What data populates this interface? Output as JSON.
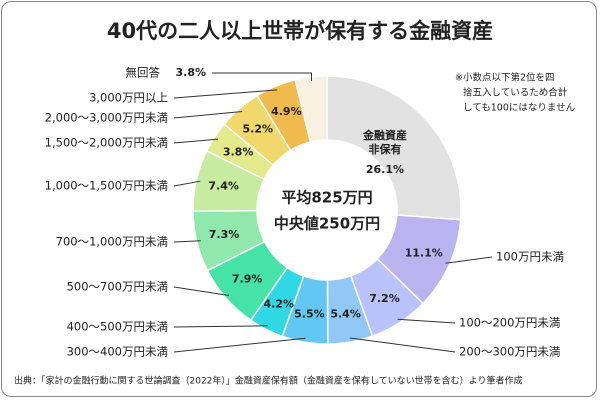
{
  "chart_data": {
    "type": "donut",
    "title": "40代の二人以上世帯が保有する金融資産",
    "categories": [
      "金融資産\n非保有",
      "100万円未満",
      "100～200万円未満",
      "200～300万円未満",
      "300～400万円未満",
      "400～500万円未満",
      "500～700万円未満",
      "700～1,000万円未満",
      "1,000～1,500万円未満",
      "1,500～2,000万円未満",
      "2,000～3,000万円未満",
      "3,000万円以上",
      "無回答"
    ],
    "values": [
      26.1,
      11.1,
      7.2,
      5.4,
      5.5,
      4.2,
      7.9,
      7.3,
      7.4,
      3.8,
      5.2,
      4.9,
      3.8
    ],
    "value_labels": [
      "26.1%",
      "11.1%",
      "7.2%",
      "5.4%",
      "5.5%",
      "4.2%",
      "7.9%",
      "7.3%",
      "7.4%",
      "3.8%",
      "5.2%",
      "4.9%",
      "3.8%"
    ],
    "colors": [
      "#e2e2e2",
      "#bab3ef",
      "#b9c2fa",
      "#92c8f6",
      "#62c7f4",
      "#2fd8e2",
      "#45e3a8",
      "#90e8ad",
      "#c7eb9f",
      "#e3ea8c",
      "#f1d86c",
      "#f1ba4c",
      "#f8f1e1"
    ],
    "center_text": [
      "平均825万円",
      "中央値250万円"
    ],
    "note": [
      "※小数点以下第2位を四",
      "捨五入しているため合計",
      "しても100にはなりません"
    ],
    "source": "出典：「家計の金融行動に関する世論調査（2022年）」金融資産保有額（金融資産を保有していない世帯を含む）より筆者作成"
  }
}
